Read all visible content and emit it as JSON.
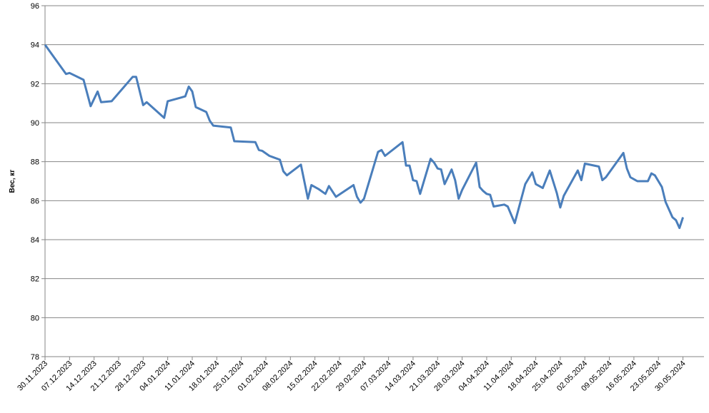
{
  "chart_data": {
    "type": "line",
    "y_label": "Вес, кг",
    "x": [
      "30.11.2023",
      "06.12.2023",
      "07.12.2023",
      "11.12.2023",
      "13.12.2023",
      "15.12.2023",
      "16.12.2023",
      "19.12.2023",
      "25.12.2023",
      "26.12.2023",
      "28.12.2023",
      "29.12.2023",
      "03.01.2024",
      "04.01.2024",
      "09.01.2024",
      "10.01.2024",
      "11.01.2024",
      "12.01.2024",
      "15.01.2024",
      "16.01.2024",
      "17.01.2024",
      "22.01.2024",
      "23.01.2024",
      "29.01.2024",
      "30.01.2024",
      "31.01.2024",
      "02.02.2024",
      "05.02.2024",
      "06.02.2024",
      "07.02.2024",
      "11.02.2024",
      "13.02.2024",
      "14.02.2024",
      "15.02.2024",
      "16.02.2024",
      "18.02.2024",
      "19.02.2024",
      "21.02.2024",
      "26.02.2024",
      "27.02.2024",
      "28.02.2024",
      "29.02.2024",
      "04.03.2024",
      "05.03.2024",
      "06.03.2024",
      "11.03.2024",
      "12.03.2024",
      "13.03.2024",
      "14.03.2024",
      "15.03.2024",
      "16.03.2024",
      "19.03.2024",
      "20.03.2024",
      "21.03.2024",
      "22.03.2024",
      "23.03.2024",
      "25.03.2024",
      "26.03.2024",
      "27.03.2024",
      "28.03.2024",
      "01.04.2024",
      "02.04.2024",
      "03.04.2024",
      "04.04.2024",
      "05.04.2024",
      "06.04.2024",
      "09.04.2024",
      "10.04.2024",
      "12.04.2024",
      "15.04.2024",
      "17.04.2024",
      "18.04.2024",
      "20.04.2024",
      "22.04.2024",
      "24.04.2024",
      "25.04.2024",
      "26.04.2024",
      "30.04.2024",
      "01.05.2024",
      "02.05.2024",
      "06.05.2024",
      "07.05.2024",
      "08.05.2024",
      "13.05.2024",
      "14.05.2024",
      "15.05.2024",
      "17.05.2024",
      "20.05.2024",
      "21.05.2024",
      "22.05.2024",
      "24.05.2024",
      "25.05.2024",
      "27.05.2024",
      "28.05.2024",
      "29.05.2024",
      "30.05.2024"
    ],
    "series": [
      {
        "color": "#4a7ebb",
        "values": [
          94.0,
          92.5,
          92.55,
          92.2,
          90.85,
          91.6,
          91.05,
          91.1,
          92.35,
          92.35,
          90.9,
          91.05,
          90.25,
          91.1,
          91.35,
          91.85,
          91.6,
          90.8,
          90.55,
          90.1,
          89.85,
          89.75,
          89.05,
          89.0,
          88.6,
          88.55,
          88.3,
          88.1,
          87.5,
          87.3,
          87.85,
          86.1,
          86.8,
          86.7,
          86.6,
          86.35,
          86.75,
          86.2,
          86.8,
          86.2,
          85.9,
          86.1,
          88.5,
          88.6,
          88.3,
          89.0,
          87.8,
          87.8,
          87.05,
          87.0,
          86.35,
          88.15,
          87.95,
          87.65,
          87.6,
          86.85,
          87.6,
          87.05,
          86.1,
          86.55,
          87.95,
          86.7,
          86.5,
          86.35,
          86.3,
          85.7,
          85.8,
          85.7,
          84.85,
          86.85,
          87.45,
          86.85,
          86.65,
          87.55,
          86.4,
          85.65,
          86.25,
          87.55,
          87.05,
          87.9,
          87.75,
          87.05,
          87.2,
          88.45,
          87.65,
          87.2,
          87.0,
          87.0,
          87.4,
          87.3,
          86.7,
          85.95,
          85.15,
          85.0,
          84.6,
          85.15
        ]
      }
    ],
    "xlim": [
      "30.11.2023",
      "05.06.2024"
    ],
    "xticks": [
      "30.11.2023",
      "07.12.2023",
      "14.12.2023",
      "21.12.2023",
      "28.12.2023",
      "04.01.2024",
      "11.01.2024",
      "18.01.2024",
      "25.01.2024",
      "01.02.2024",
      "08.02.2024",
      "15.02.2024",
      "22.02.2024",
      "29.02.2024",
      "07.03.2024",
      "14.03.2024",
      "21.03.2024",
      "28.03.2024",
      "04.04.2024",
      "11.04.2024",
      "18.04.2024",
      "25.04.2024",
      "02.05.2024",
      "09.05.2024",
      "16.05.2024",
      "23.05.2024",
      "30.05.2024"
    ],
    "ylim": [
      78,
      96
    ],
    "yticks": [
      78,
      80,
      82,
      84,
      86,
      88,
      90,
      92,
      94,
      96
    ],
    "grid": true
  }
}
